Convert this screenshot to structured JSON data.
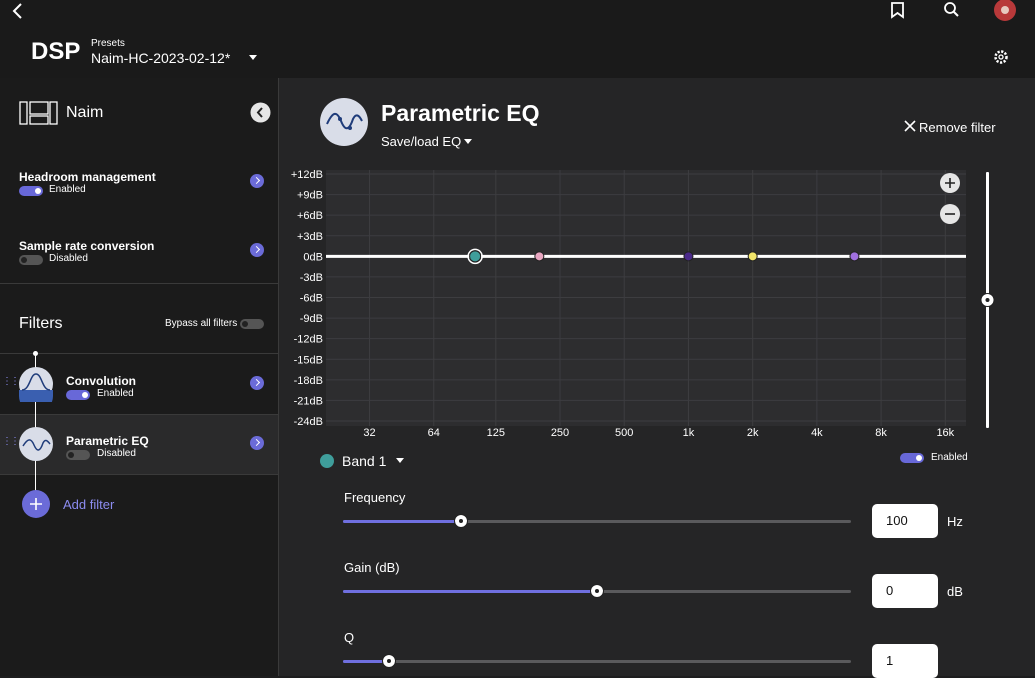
{
  "header": {
    "title": "DSP",
    "presets_label": "Presets",
    "preset": "Naim-HC-2023-02-12*"
  },
  "sidebar": {
    "device": "Naim",
    "settings": [
      {
        "label": "Headroom management",
        "status": "Enabled",
        "on": true
      },
      {
        "label": "Sample rate conversion",
        "status": "Disabled",
        "on": false
      }
    ],
    "filters_title": "Filters",
    "bypass_label": "Bypass all filters",
    "filters": [
      {
        "name": "Convolution",
        "status": "Enabled",
        "on": true
      },
      {
        "name": "Parametric EQ",
        "status": "Disabled",
        "on": false
      }
    ],
    "add_filter": "Add filter"
  },
  "panel": {
    "title": "Parametric EQ",
    "save_load": "Save/load EQ",
    "remove": "Remove filter",
    "graph": {
      "ylim": [
        -24,
        12
      ],
      "xlim": [
        20,
        20000
      ],
      "log_x": true,
      "yticks": [
        {
          "value": 12,
          "label": "+12dB"
        },
        {
          "value": 9,
          "label": "+9dB"
        },
        {
          "value": 6,
          "label": "+6dB"
        },
        {
          "value": 3,
          "label": "+3dB"
        },
        {
          "value": 0,
          "label": "0dB"
        },
        {
          "value": -3,
          "label": "-3dB"
        },
        {
          "value": -6,
          "label": "-6dB"
        },
        {
          "value": -9,
          "label": "-9dB"
        },
        {
          "value": -12,
          "label": "-12dB"
        },
        {
          "value": -15,
          "label": "-15dB"
        },
        {
          "value": -18,
          "label": "-18dB"
        },
        {
          "value": -21,
          "label": "-21dB"
        },
        {
          "value": -24,
          "label": "-24dB"
        }
      ],
      "xticks": [
        32,
        64,
        125,
        250,
        500,
        {
          "value": 1000,
          "label": "1k"
        },
        {
          "value": 2000,
          "label": "2k"
        },
        {
          "value": 4000,
          "label": "4k"
        },
        {
          "value": 8000,
          "label": "8k"
        },
        {
          "value": 16000,
          "label": "16k"
        }
      ],
      "bands": [
        {
          "freq": 100,
          "gain": 0,
          "color": "#3f9e9b"
        },
        {
          "freq": 200,
          "gain": 0,
          "color": "#e8a6c0"
        },
        {
          "freq": 1000,
          "gain": 0,
          "color": "#4b2a8a"
        },
        {
          "freq": 2000,
          "gain": 0,
          "color": "#f2e66a"
        },
        {
          "freq": 6000,
          "gain": 0,
          "color": "#a070e0"
        }
      ]
    },
    "band": "Band 1",
    "band_status": "Enabled",
    "controls": [
      {
        "label": "Frequency",
        "value": 100,
        "unit": "Hz",
        "range": [
          20,
          20000
        ],
        "log": true
      },
      {
        "label": "Gain (dB)",
        "value": 0,
        "unit": "dB",
        "range": [
          -12,
          12
        ],
        "log": false
      },
      {
        "label": "Q",
        "value": 1,
        "range": [
          0.1,
          10
        ],
        "log": false
      }
    ]
  }
}
